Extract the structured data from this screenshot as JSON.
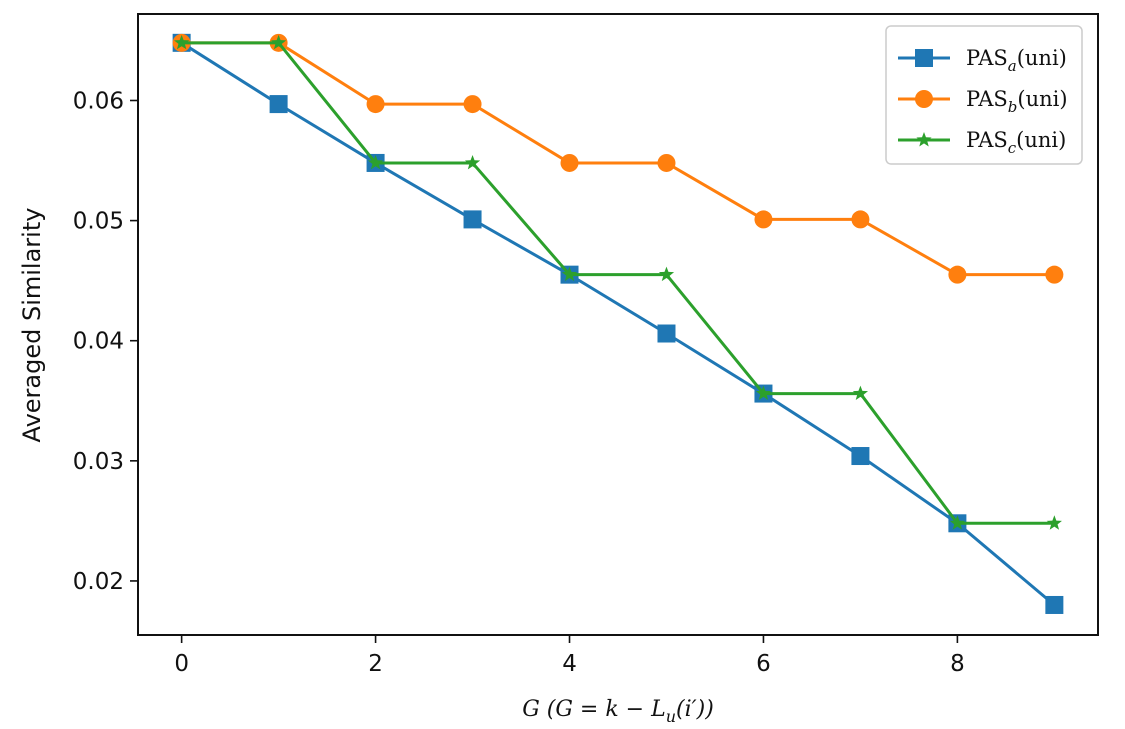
{
  "chart_data": {
    "type": "line",
    "title": "",
    "xlabel": "G (G = k − L_u(i′))",
    "ylabel": "Averaged Similarity",
    "x": [
      0,
      1,
      2,
      3,
      4,
      5,
      6,
      7,
      8,
      9
    ],
    "xlim": [
      -0.45,
      9.45
    ],
    "ylim": [
      0.0155,
      0.0672
    ],
    "xticks": [
      0,
      2,
      4,
      6,
      8
    ],
    "yticks": [
      0.02,
      0.03,
      0.04,
      0.05,
      0.06
    ],
    "xtick_labels": [
      "0",
      "2",
      "4",
      "6",
      "8"
    ],
    "ytick_labels": [
      "0.02",
      "0.03",
      "0.04",
      "0.05",
      "0.06"
    ],
    "grid": false,
    "legend_position": "top-right",
    "series": [
      {
        "name": "PAS_a(uni)",
        "label_base": "PAS",
        "label_sub": "a",
        "label_suffix": "(uni)",
        "color": "#1f77b4",
        "marker": "square",
        "values": [
          0.0648,
          0.0597,
          0.0548,
          0.0501,
          0.0455,
          0.0406,
          0.0356,
          0.0304,
          0.0248,
          0.018
        ]
      },
      {
        "name": "PAS_b(uni)",
        "label_base": "PAS",
        "label_sub": "b",
        "label_suffix": "(uni)",
        "color": "#ff7f0e",
        "marker": "circle",
        "values": [
          0.0648,
          0.0648,
          0.0597,
          0.0597,
          0.0548,
          0.0548,
          0.0501,
          0.0501,
          0.0455,
          0.0455
        ]
      },
      {
        "name": "PAS_c(uni)",
        "label_base": "PAS",
        "label_sub": "c",
        "label_suffix": "(uni)",
        "color": "#2ca02c",
        "marker": "star",
        "values": [
          0.0648,
          0.0648,
          0.0548,
          0.0548,
          0.0455,
          0.0455,
          0.0356,
          0.0356,
          0.0248,
          0.0248
        ]
      }
    ]
  }
}
